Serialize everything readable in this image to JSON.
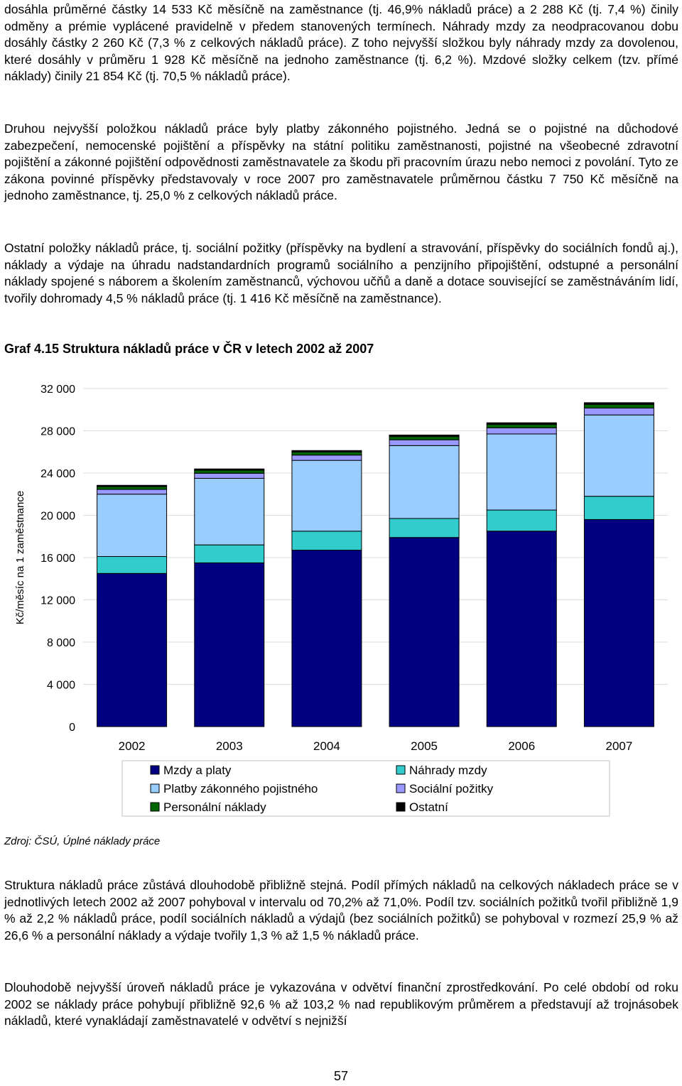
{
  "paragraphs": [
    "dosáhla průměrné částky 14 533 Kč měsíčně na zaměstnance (tj. 46,9% nákladů práce) a 2 288 Kč (tj. 7,4 %) činily odměny a prémie vyplácené pravidelně v předem stanovených termínech. Náhrady mzdy za neodpracovanou dobu dosáhly částky 2 260 Kč (7,3 % z celkových nákladů práce). Z toho nejvyšší složkou byly náhrady mzdy za dovolenou, které dosáhly v průměru 1 928 Kč měsíčně na jednoho zaměstnance (tj. 6,2 %). Mzdové složky celkem (tzv. přímé náklady) činily 21 854 Kč (tj. 70,5 % nákladů práce).",
    "Druhou nejvyšší položkou nákladů práce byly platby zákonného pojistného. Jedná se o pojistné na důchodové zabezpečení, nemocenské pojištění a příspěvky na státní politiku zaměstnanosti, pojistné na všeobecné zdravotní pojištění a zákonné pojištění odpovědnosti zaměstnavatele za škodu při pracovním úrazu nebo nemoci z povolání. Tyto ze zákona povinné příspěvky představovaly v roce 2007 pro zaměstnavatele průměrnou částku 7 750 Kč měsíčně na jednoho zaměstnance, tj. 25,0 % z celkových nákladů práce.",
    "Ostatní položky nákladů práce, tj. sociální požitky (příspěvky na bydlení a stravování, příspěvky do sociálních fondů aj.), náklady a výdaje na úhradu nadstandardních programů sociálního a penzijního připojištění, odstupné a personální náklady spojené s náborem a školením zaměstnanců, výchovou učňů a daně a dotace související se zaměstnáváním lidí, tvořily dohromady 4,5 % nákladů práce (tj. 1 416 Kč měsíčně na zaměstnance).",
    "Struktura nákladů práce zůstává dlouhodobě přibližně stejná. Podíl přímých nákladů na celkových nákladech práce se v jednotlivých letech 2002 až 2007 pohyboval v intervalu od 70,2% až 71,0%. Podíl tzv. sociálních požitků tvořil přibližně 1,9 % až 2,2 % nákladů práce, podíl sociálních nákladů a výdajů (bez sociálních požitků) se pohyboval v rozmezí 25,9 % až 26,6 % a personální náklady a výdaje tvořily 1,3 % až 1,5 % nákladů práce.",
    "Dlouhodobě nejvyšší úroveň nákladů práce je vykazována v odvětví finanční zprostředkování. Po celé období od roku 2002 se náklady práce pohybují přibližně 92,6 % až 103,2 % nad republikovým průměrem a představují až trojnásobek nákladů, které vynakládají zaměstnavatelé v odvětví s nejnižší"
  ],
  "caption": "Graf 4.15  Struktura nákladů práce v ČR v letech 2002 až 2007",
  "source": "Zdroj: ČSÚ, Úplné náklady práce",
  "page_number": "57",
  "chart_data": {
    "type": "bar",
    "stacked": true,
    "title": "Graf 4.15  Struktura nákladů práce v ČR v letech 2002 až 2007",
    "xlabel": "",
    "ylabel": "Kč/měsíc na 1 zaměstnance",
    "ylim": [
      0,
      32000
    ],
    "yticks": [
      0,
      4000,
      8000,
      12000,
      16000,
      20000,
      24000,
      28000,
      32000
    ],
    "ytick_labels": [
      "0",
      "4 000",
      "8 000",
      "12 000",
      "16 000",
      "20 000",
      "24 000",
      "28 000",
      "32 000"
    ],
    "categories": [
      "2002",
      "2003",
      "2004",
      "2005",
      "2006",
      "2007"
    ],
    "legend_position": "bottom",
    "series": [
      {
        "name": "Mzdy a platy",
        "color": "#000080",
        "values": [
          14500,
          15500,
          16700,
          17900,
          18500,
          19600
        ]
      },
      {
        "name": "Náhrady mzdy",
        "color": "#33CCCC",
        "values": [
          1600,
          1700,
          1800,
          1800,
          2000,
          2200
        ]
      },
      {
        "name": "Platby zákonného pojistného",
        "color": "#99CCFF",
        "values": [
          5900,
          6300,
          6700,
          6900,
          7200,
          7700
        ]
      },
      {
        "name": "Sociální požitky",
        "color": "#9999FF",
        "values": [
          450,
          480,
          500,
          550,
          580,
          650
        ]
      },
      {
        "name": "Personální náklady",
        "color": "#006600",
        "values": [
          270,
          280,
          290,
          300,
          320,
          340
        ]
      },
      {
        "name": "Ostatní",
        "color": "#000000",
        "values": [
          120,
          130,
          140,
          150,
          160,
          170
        ]
      }
    ]
  }
}
